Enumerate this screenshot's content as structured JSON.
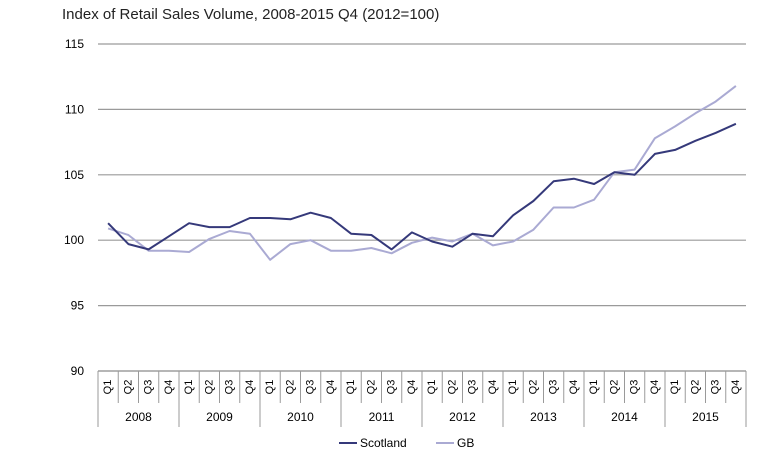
{
  "chart_data": {
    "type": "line",
    "title": "Index of Retail Sales Volume, 2008-2015 Q4 (2012=100)",
    "xlabel": "",
    "ylabel": "",
    "ylim": [
      90,
      115
    ],
    "yticks": [
      90,
      95,
      100,
      105,
      110,
      115
    ],
    "grid": true,
    "legend": "bottom",
    "quarters": [
      "Q1",
      "Q2",
      "Q3",
      "Q4"
    ],
    "years": [
      "2008",
      "2009",
      "2010",
      "2011",
      "2012",
      "2013",
      "2014",
      "2015"
    ],
    "series": [
      {
        "name": "Scotland",
        "color": "#35397a",
        "values": [
          101.3,
          99.7,
          99.3,
          100.3,
          101.3,
          101.0,
          101.0,
          101.7,
          101.7,
          101.6,
          102.1,
          101.7,
          100.5,
          100.4,
          99.3,
          100.6,
          99.9,
          99.5,
          100.5,
          100.3,
          101.9,
          103.0,
          104.5,
          104.7,
          104.3,
          105.2,
          105.0,
          106.6,
          106.9,
          107.6,
          108.2,
          108.9
        ]
      },
      {
        "name": "GB",
        "color": "#aaaad3",
        "values": [
          100.9,
          100.4,
          99.2,
          99.2,
          99.1,
          100.1,
          100.7,
          100.5,
          98.5,
          99.7,
          100.0,
          99.2,
          99.2,
          99.4,
          99.0,
          99.8,
          100.2,
          99.9,
          100.5,
          99.6,
          99.9,
          100.8,
          102.5,
          102.5,
          103.1,
          105.2,
          105.4,
          107.8,
          108.7,
          109.7,
          110.6,
          111.8
        ]
      }
    ]
  }
}
